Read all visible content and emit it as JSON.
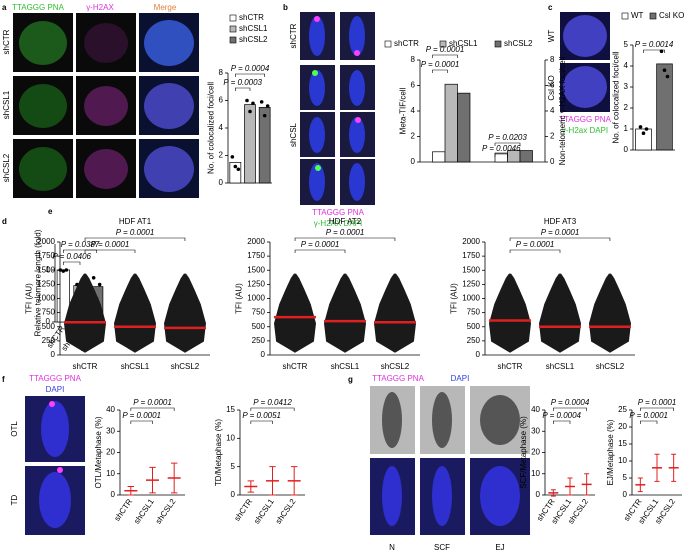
{
  "figure": {
    "panel_letters": [
      "a",
      "b",
      "c",
      "d",
      "e",
      "f",
      "g"
    ],
    "image_labels": [
      "TTAGGG PNA",
      "γ-H2AX",
      "Merge",
      "shCTR",
      "shCSL1",
      "shCSL2",
      "shCTR",
      "shCSL",
      "TTAGGG PNA",
      "γ-H2AX DAPI",
      "WT",
      "Csl KO",
      "TTAGGG PNA",
      "γ-H2ax DAPI",
      "OTL",
      "TD",
      "TTAGGG PNA",
      "DAPI",
      "TTAGGG PNA",
      "DAPI",
      "N",
      "SCF",
      "EJ"
    ]
  },
  "chart_data": [
    {
      "type": "bar",
      "ylabel": "No. of colocalized foci/cell",
      "categories": [
        "shCTR",
        "shCSL1",
        "shCSL2"
      ],
      "values": [
        1.5,
        5.7,
        5.5
      ],
      "colors": [
        "#ffffff",
        "#b8b8b8",
        "#707070"
      ],
      "points": [
        [
          1.9,
          1.2,
          1.0
        ],
        [
          6.0,
          5.2,
          5.8
        ],
        [
          5.9,
          4.9,
          5.6
        ]
      ],
      "ylim": [
        0,
        8
      ],
      "yticks": [
        0,
        2,
        4,
        6,
        8
      ],
      "legend": "vertical",
      "annotations": [
        "P = 0.0004",
        "P = 0.0003"
      ]
    },
    {
      "type": "grouped",
      "ylabel": "Meta-TIF/cell",
      "y2label": "Non-telomeric γ-H2AX foci/cell",
      "categories": [
        null,
        null
      ],
      "series": [
        {
          "name": "shCTR",
          "color": "#ffffff",
          "values": [
            0.8,
            0.7
          ]
        },
        {
          "name": "shCSL1",
          "color": "#b8b8b8",
          "values": [
            6.1,
            0.9
          ]
        },
        {
          "name": "shCSL2",
          "color": "#707070",
          "values": [
            5.4,
            0.9
          ]
        }
      ],
      "ylim": [
        0,
        8
      ],
      "yticks": [
        0,
        2,
        4,
        6,
        8
      ],
      "y2lim": [
        0,
        8
      ],
      "y2ticks": [
        0,
        2,
        4,
        6,
        8
      ],
      "annotations": [
        "P = 0.0001",
        "P = 0.0001",
        "P = 0.0203",
        "P = 0.0046"
      ]
    },
    {
      "type": "bar",
      "ylabel": "No. of colocalized foci/cell",
      "categories": [
        "WT",
        "Csl KO"
      ],
      "values": [
        1.0,
        4.1
      ],
      "colors": [
        "#ffffff",
        "#707070"
      ],
      "points": [
        [
          1.1,
          0.8,
          1.0
        ],
        [
          4.7,
          3.8,
          3.5
        ]
      ],
      "ylim": [
        0,
        5
      ],
      "yticks": [
        0,
        1,
        2,
        3,
        4,
        5
      ],
      "legend": "horizontal",
      "annotations": [
        "P = 0.0014"
      ]
    },
    {
      "type": "bar",
      "ylabel": "Relative telomere length (fold)",
      "categories": [
        "shCTR",
        "shCSL1",
        "shCSL2"
      ],
      "values": [
        1.0,
        0.7,
        0.68
      ],
      "colors": [
        "#ffffff",
        "#b8b8b8",
        "#707070"
      ],
      "points": [
        [
          1.0,
          0.98,
          1.0
        ],
        [
          0.72,
          0.66,
          0.7
        ],
        [
          0.85,
          0.45,
          0.72
        ]
      ],
      "ylim": [
        0,
        1.5
      ],
      "yticks": [
        0,
        1
      ],
      "xlabels": true,
      "annotations": [
        "P = 0.0406",
        "P = 0.0387"
      ]
    },
    {
      "type": "dots",
      "title": "HDF AT1",
      "ylabel": "TFI (AU)",
      "categories": [
        "shCTR",
        "shCSL1",
        "shCSL2"
      ],
      "values": [
        580,
        500,
        480
      ],
      "color": "#e02020",
      "ylim": [
        0,
        2000
      ],
      "yticks": [
        0,
        250,
        500,
        750,
        1000,
        1250,
        1500,
        1750,
        2000
      ],
      "xlabels": true,
      "annotations": [
        "P = 0.0001",
        "P = 0.0001"
      ]
    },
    {
      "type": "dots",
      "title": "HDF AT2",
      "ylabel": "TFI (AU)",
      "categories": [
        "shCTR",
        "shCSL1",
        "shCSL2"
      ],
      "values": [
        670,
        600,
        580
      ],
      "color": "#e02020",
      "ylim": [
        0,
        2000
      ],
      "yticks": [
        0,
        250,
        500,
        750,
        1000,
        1250,
        1500,
        1750,
        2000
      ],
      "xlabels": true,
      "annotations": [
        "P = 0.0001",
        "P = 0.0001"
      ]
    },
    {
      "type": "dots",
      "title": "HDF AT3",
      "ylabel": "TFI (AU)",
      "categories": [
        "shCTR",
        "shCSL1",
        "shCSL2"
      ],
      "values": [
        610,
        500,
        500
      ],
      "color": "#e02020",
      "ylim": [
        0,
        2000
      ],
      "yticks": [
        0,
        250,
        500,
        750,
        1000,
        1250,
        1500,
        1750,
        2000
      ],
      "xlabels": true,
      "annotations": [
        "P = 0.0001",
        "P = 0.0001"
      ]
    },
    {
      "type": "errorbar",
      "ylabel": "OTL/Metaphase (%)",
      "categories": [
        "shCTR",
        "shCSL1",
        "shCSL2"
      ],
      "values": [
        2,
        7,
        8
      ],
      "errors": [
        2,
        6,
        7
      ],
      "color": "#e02020",
      "ylim": [
        0,
        40
      ],
      "yticks": [
        0,
        10,
        20,
        30,
        40
      ],
      "xlabels": "rot",
      "annotations": [
        "P = 0.0001",
        "P = 0.0001"
      ]
    },
    {
      "type": "errorbar",
      "ylabel": "TD/Metaphase (%)",
      "categories": [
        "shCTR",
        "shCSL1",
        "shCSL2"
      ],
      "values": [
        1.5,
        2.5,
        2.5
      ],
      "errors": [
        1,
        2.5,
        2.5
      ],
      "color": "#e02020",
      "ylim": [
        0,
        15
      ],
      "yticks": [
        0,
        5,
        10,
        15
      ],
      "xlabels": "rot",
      "annotations": [
        "P = 0.0412",
        "P = 0.0051"
      ]
    },
    {
      "type": "errorbar",
      "ylabel": "SCF/Metaphase (%)",
      "categories": [
        "shCTR",
        "shCSL1",
        "shCSL2"
      ],
      "values": [
        1,
        4,
        5
      ],
      "errors": [
        1.5,
        4,
        5
      ],
      "color": "#e02020",
      "ylim": [
        0,
        40
      ],
      "yticks": [
        0,
        10,
        20,
        30,
        40
      ],
      "xlabels": "rot",
      "annotations": [
        "P = 0.0004",
        "P = 0.0004"
      ]
    },
    {
      "type": "errorbar",
      "ylabel": "EJ/Metaphase (%)",
      "categories": [
        "shCTR",
        "shCSL1",
        "shCSL2"
      ],
      "values": [
        3,
        8,
        8
      ],
      "errors": [
        2,
        4,
        4
      ],
      "color": "#e02020",
      "ylim": [
        0,
        25
      ],
      "yticks": [
        0,
        5,
        10,
        15,
        20,
        25
      ],
      "xlabels": "rot",
      "annotations": [
        "P = 0.0001",
        "P = 0.0001"
      ]
    }
  ]
}
